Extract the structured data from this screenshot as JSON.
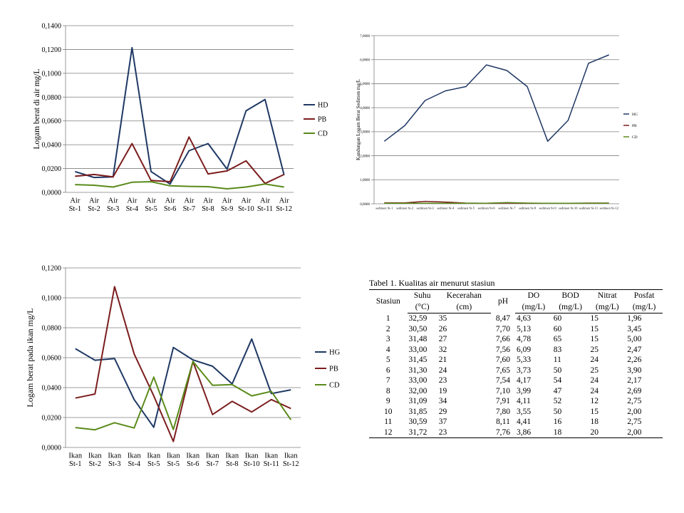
{
  "chart_data": [
    {
      "type": "line",
      "title": "",
      "xlabel": "",
      "ylabel": "Logam berat di air mg/L",
      "categories": [
        [
          "Air",
          "St-1"
        ],
        [
          "Air",
          "St-2"
        ],
        [
          "Air",
          "St-3"
        ],
        [
          "Air",
          "St-4"
        ],
        [
          "Air",
          "St-5"
        ],
        [
          "Air",
          "St-6"
        ],
        [
          "Air",
          "St-7"
        ],
        [
          "Air",
          "St-8"
        ],
        [
          "Air",
          "St-9"
        ],
        [
          "Air",
          "St-10"
        ],
        [
          "Air",
          "St-11"
        ],
        [
          "Air",
          "St-12"
        ]
      ],
      "ylim": [
        0,
        0.14
      ],
      "yticks": [
        "0,0000",
        "0,0200",
        "0,0400",
        "0,0600",
        "0,0800",
        "0,1000",
        "0,1200",
        "0,1400"
      ],
      "grid": true,
      "legend_position": "right",
      "series": [
        {
          "name": "HD",
          "color": "#1f3864",
          "values": [
            0.0175,
            0.0125,
            0.013,
            0.1215,
            0.0175,
            0.007,
            0.035,
            0.041,
            0.0195,
            0.0685,
            0.078,
            0.0145
          ]
        },
        {
          "name": "PB",
          "color": "#7b1d1d",
          "values": [
            0.0135,
            0.015,
            0.013,
            0.041,
            0.01,
            0.009,
            0.0465,
            0.0155,
            0.018,
            0.0265,
            0.0075,
            0.015
          ]
        },
        {
          "name": "CD",
          "color": "#5a8a1a",
          "values": [
            0.0065,
            0.006,
            0.0045,
            0.0085,
            0.009,
            0.0055,
            0.005,
            0.0048,
            0.003,
            0.0045,
            0.007,
            0.0045
          ]
        }
      ]
    },
    {
      "type": "line",
      "title": "",
      "xlabel": "",
      "ylabel": "Kandungan Logam Berat Sedimen mg/L",
      "categories": [
        "sedimen St-1",
        "sedimen St-2",
        "sedimen St-3",
        "sedimen St-4",
        "sedimen St-5",
        "sedimen St-6",
        "sedimen St-7",
        "sedimen St-8",
        "sedimen St-9",
        "sedimen St-10",
        "sedimen St-11",
        "sedimen St-12"
      ],
      "ylim": [
        0,
        7
      ],
      "yticks": [
        "0,0000",
        "1,0000",
        "2,0000",
        "3,0000",
        "4,0000",
        "5,0000",
        "6,0000",
        "7,0000"
      ],
      "grid": true,
      "legend_position": "right",
      "series": [
        {
          "name": "HG",
          "color": "#1f3864",
          "values": [
            2.6,
            3.25,
            4.3,
            4.7,
            4.88,
            5.78,
            5.55,
            4.88,
            2.6,
            3.47,
            5.85,
            6.2
          ]
        },
        {
          "name": "PB",
          "color": "#7b1d1d",
          "values": [
            0.04,
            0.04,
            0.1,
            0.07,
            0.03,
            0.02,
            0.03,
            0.02,
            0.02,
            0.02,
            0.03,
            0.03
          ]
        },
        {
          "name": "CD",
          "color": "#5a8a1a",
          "values": [
            0.02,
            0.02,
            0.02,
            0.02,
            0.02,
            0.02,
            0.05,
            0.03,
            0.02,
            0.02,
            0.02,
            0.02
          ]
        }
      ]
    },
    {
      "type": "line",
      "title": "",
      "xlabel": "",
      "ylabel": "Logam berat pada ikan mg/L",
      "categories": [
        [
          "Ikan",
          "St-1"
        ],
        [
          "Ikan",
          "St-2"
        ],
        [
          "Ikan",
          "St-3"
        ],
        [
          "Ikan",
          "St-4"
        ],
        [
          "Ikan",
          "St-5"
        ],
        [
          "Ikan",
          "St-5"
        ],
        [
          "Ikan",
          "St-6"
        ],
        [
          "Ikan",
          "St-7"
        ],
        [
          "Ikan",
          "St-8"
        ],
        [
          "Ikan",
          "St-10"
        ],
        [
          "Ikan",
          "St-11"
        ],
        [
          "Ikan",
          "St-12"
        ]
      ],
      "ylim": [
        0,
        0.12
      ],
      "yticks": [
        "0,0000",
        "0,0200",
        "0,0400",
        "0,0600",
        "0,0800",
        "0,1000",
        "0,1200"
      ],
      "grid": true,
      "legend_position": "right",
      "series": [
        {
          "name": "HG",
          "color": "#1f3864",
          "values": [
            0.066,
            0.0583,
            0.0594,
            0.032,
            0.0135,
            0.0668,
            0.0585,
            0.0543,
            0.0425,
            0.0725,
            0.036,
            0.0385
          ]
        },
        {
          "name": "PB",
          "color": "#7b1d1d",
          "values": [
            0.033,
            0.0357,
            0.1075,
            0.0625,
            0.0345,
            0.004,
            0.0575,
            0.022,
            0.0308,
            0.0237,
            0.032,
            0.026
          ]
        },
        {
          "name": "CD",
          "color": "#5a8a1a",
          "values": [
            0.0133,
            0.0118,
            0.0165,
            0.013,
            0.047,
            0.012,
            0.0575,
            0.0415,
            0.042,
            0.0345,
            0.0375,
            0.0185
          ]
        }
      ]
    }
  ],
  "table": {
    "caption": "Tabel 1. Kualitas air menurut stasiun",
    "headers_top": [
      "Stasiun",
      "Suhu",
      "Kecerahan",
      "pH",
      "DO",
      "BOD",
      "Nitrat",
      "Posfat"
    ],
    "headers_bottom": [
      "",
      "(°C)",
      "(cm)",
      "",
      "(mg/L)",
      "(mg/L)",
      "(mg/L)",
      "(mg/L)"
    ],
    "rows": [
      [
        "1",
        "32,59",
        "35",
        "8,47",
        "4,63",
        "60",
        "15",
        "1,96"
      ],
      [
        "2",
        "30,50",
        "26",
        "7,70",
        "5,13",
        "60",
        "15",
        "3,45"
      ],
      [
        "3",
        "31,48",
        "27",
        "7,66",
        "4,78",
        "65",
        "15",
        "5,00"
      ],
      [
        "4",
        "33,00",
        "32",
        "7,56",
        "6,09",
        "83",
        "25",
        "2,47"
      ],
      [
        "5",
        "31,45",
        "21",
        "7,60",
        "5,33",
        "11",
        "24",
        "2,26"
      ],
      [
        "6",
        "31,30",
        "24",
        "7,65",
        "3,73",
        "50",
        "25",
        "3,90"
      ],
      [
        "7",
        "33,00",
        "23",
        "7,54",
        "4,17",
        "54",
        "24",
        "2,17"
      ],
      [
        "8",
        "32,00",
        "19",
        "7,10",
        "3,99",
        "47",
        "24",
        "2,69"
      ],
      [
        "9",
        "31,09",
        "34",
        "7,91",
        "4,11",
        "52",
        "12",
        "2,75"
      ],
      [
        "10",
        "31,85",
        "29",
        "7,80",
        "3,55",
        "50",
        "15",
        "2,00"
      ],
      [
        "11",
        "30,59",
        "37",
        "8,11",
        "4,41",
        "16",
        "18",
        "2,75"
      ],
      [
        "12",
        "31,72",
        "23",
        "7,76",
        "3,86",
        "18",
        "20",
        "2,00"
      ]
    ]
  }
}
